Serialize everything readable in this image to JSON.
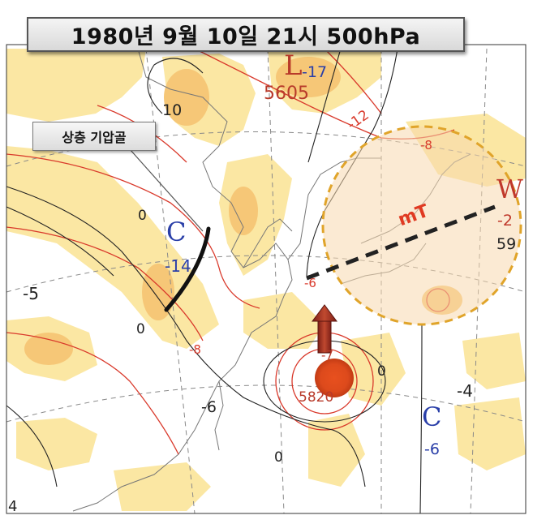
{
  "title": "1980년 9월 10일 21시 500hPa",
  "callout": "상층 기압골",
  "air_mass_label": "mT",
  "pressure_systems": [
    {
      "letter": "L",
      "color": "#b83a2a",
      "value": "-17",
      "height": "5605"
    },
    {
      "letter": "C",
      "color": "#2a3fa8",
      "value": "-14"
    },
    {
      "letter": "W",
      "color": "#c0392b",
      "value": "-2",
      "height": "59"
    },
    {
      "letter": "C",
      "color": "#2a3fa8",
      "value": "-6"
    },
    {
      "letter": "",
      "color": "#b83a2a",
      "value": "-7",
      "height": "5820"
    }
  ],
  "contour_labels": [
    "10",
    "-12",
    "0",
    "-8",
    "-5",
    "0",
    "-8",
    "-6",
    "-6",
    "0",
    "0",
    "-4",
    "4"
  ],
  "colors": {
    "jet_fill": "#fbe7a3",
    "jet_fill_dark": "#f6c777",
    "isotherm": "#d9392b",
    "height_contour": "#222222",
    "air_mass_circle": "#e0a42a",
    "typhoon": "#e3451c",
    "arrow": "#a93226"
  }
}
